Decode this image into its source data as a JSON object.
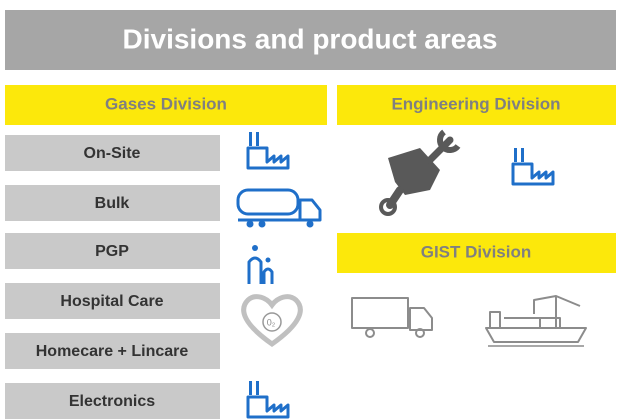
{
  "header": {
    "title": "Divisions and product areas"
  },
  "gases": {
    "title": "Gases Division",
    "products": [
      "On-Site",
      "Bulk",
      "PGP",
      "Hospital Care",
      "Homecare + Lincare",
      "Electronics"
    ]
  },
  "engineering": {
    "title": "Engineering Division"
  },
  "gist": {
    "title": "GIST Division"
  }
}
